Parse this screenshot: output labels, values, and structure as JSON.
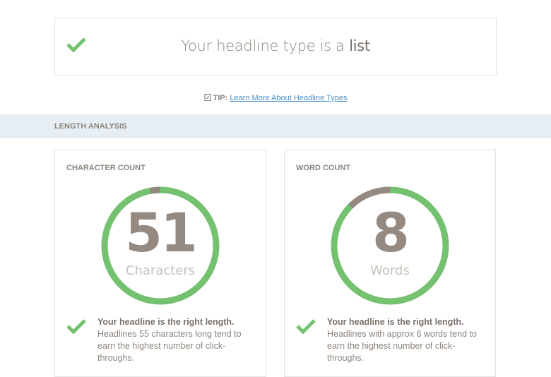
{
  "headline_type": {
    "prefix": "Your headline type is a",
    "type": "list"
  },
  "tip": {
    "label": "TIP:",
    "link": "Learn More About Headline Types"
  },
  "section": {
    "title": "LENGTH ANALYSIS"
  },
  "colors": {
    "green": "#74c16f",
    "gray": "#958a82",
    "link": "#4a90c9"
  },
  "cards": [
    {
      "title": "CHARACTER COUNT",
      "value": "51",
      "unit": "Characters",
      "green_fraction": 0.97,
      "msg_title": "Your headline is the right length.",
      "msg_body": "Headlines 55 characters long tend to earn the highest number of click-throughs."
    },
    {
      "title": "WORD COUNT",
      "value": "8",
      "unit": "Words",
      "green_fraction": 0.875,
      "msg_title": "Your headline is the right length.",
      "msg_body": "Headlines with approx 6 words tend to earn the highest number of click-throughs."
    }
  ]
}
